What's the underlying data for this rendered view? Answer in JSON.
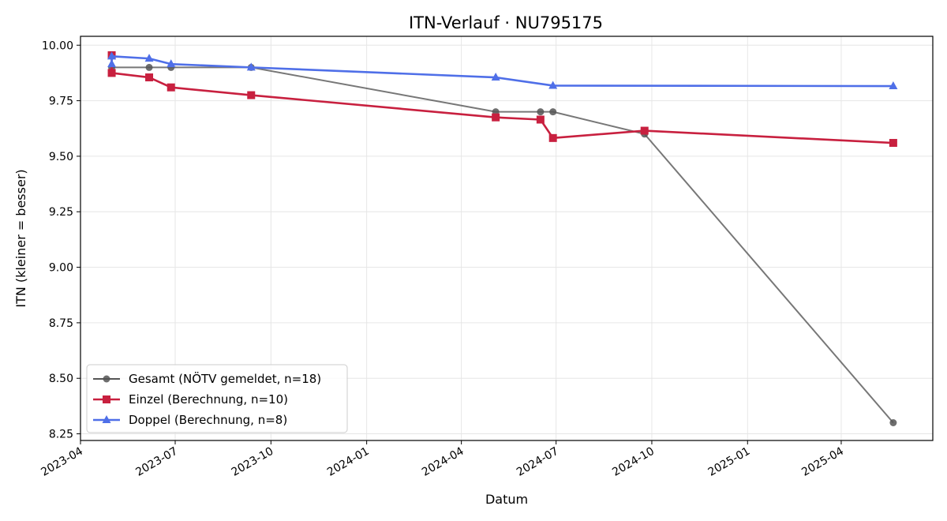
{
  "chart_data": {
    "type": "line",
    "title": "ITN-Verlauf · NU795175",
    "xlabel": "Datum",
    "ylabel": "ITN  (kleiner = besser)",
    "x_axis_type": "date",
    "xlim": [
      "2023-04-01",
      "2025-06-28"
    ],
    "ylim": [
      8.22,
      10.04
    ],
    "grid": true,
    "legend_position": "lower-left",
    "x_ticks": [
      "2023-04",
      "2023-07",
      "2023-10",
      "2024-01",
      "2024-04",
      "2024-07",
      "2024-10",
      "2025-01",
      "2025-04"
    ],
    "y_ticks": [
      "8.25",
      "8.50",
      "8.75",
      "9.00",
      "9.25",
      "9.50",
      "9.75",
      "10.00"
    ],
    "series": [
      {
        "name": "Gesamt (NÖTV gemeldet, n=18)",
        "color": "#555555",
        "marker": "circle",
        "points": [
          {
            "x": "2023-05-01",
            "y": 9.9
          },
          {
            "x": "2023-06-06",
            "y": 9.9
          },
          {
            "x": "2023-06-27",
            "y": 9.9
          },
          {
            "x": "2023-09-12",
            "y": 9.9
          },
          {
            "x": "2024-05-04",
            "y": 9.7
          },
          {
            "x": "2024-06-16",
            "y": 9.7
          },
          {
            "x": "2024-06-28",
            "y": 9.7
          },
          {
            "x": "2024-09-24",
            "y": 9.6
          },
          {
            "x": "2025-05-21",
            "y": 8.3
          }
        ]
      },
      {
        "name": "Einzel (Berechnung, n=10)",
        "color": "#c8203f",
        "marker": "square",
        "points": [
          {
            "x": "2023-05-01",
            "y": 9.955
          },
          {
            "x": "2023-05-01",
            "y": 9.875
          },
          {
            "x": "2023-06-06",
            "y": 9.855
          },
          {
            "x": "2023-06-27",
            "y": 9.81
          },
          {
            "x": "2023-09-12",
            "y": 9.775
          },
          {
            "x": "2024-05-04",
            "y": 9.675
          },
          {
            "x": "2024-06-16",
            "y": 9.665
          },
          {
            "x": "2024-06-28",
            "y": 9.582
          },
          {
            "x": "2024-09-24",
            "y": 9.615
          },
          {
            "x": "2025-05-21",
            "y": 9.56
          }
        ]
      },
      {
        "name": "Doppel (Berechnung, n=8)",
        "color": "#4f6fe8",
        "marker": "triangle",
        "points": [
          {
            "x": "2023-05-01",
            "y": 9.915
          },
          {
            "x": "2023-05-01",
            "y": 9.95
          },
          {
            "x": "2023-06-06",
            "y": 9.94
          },
          {
            "x": "2023-06-27",
            "y": 9.915
          },
          {
            "x": "2023-09-12",
            "y": 9.9
          },
          {
            "x": "2024-05-04",
            "y": 9.855
          },
          {
            "x": "2024-06-28",
            "y": 9.818
          },
          {
            "x": "2025-05-21",
            "y": 9.816
          }
        ]
      }
    ]
  }
}
